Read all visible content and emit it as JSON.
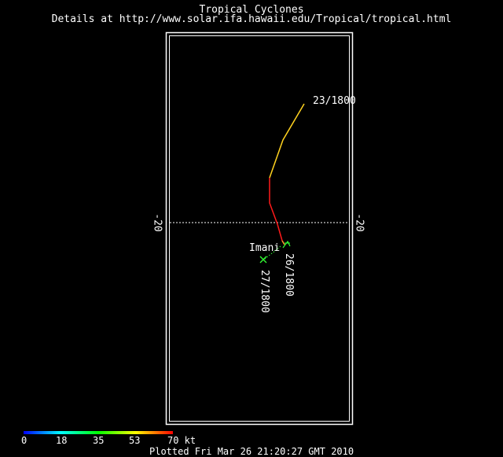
{
  "header": {
    "title": "Tropical Cyclones",
    "subtitle": "Details at http://www.solar.ifa.hawaii.edu/Tropical/tropical.html"
  },
  "map": {
    "latitude_line": {
      "value": -20,
      "left_label": "-20",
      "right_label": "-20"
    },
    "storm": {
      "name": "Imani",
      "labels": {
        "start": "23/1800",
        "current": "26/1800",
        "forecast": "27/1800"
      },
      "track_colors": {
        "early": "#ffd21f",
        "middle": "#ff1a1a",
        "current": "#ff9a2e",
        "forecast": "#33ff33"
      }
    }
  },
  "legend": {
    "colorbar_ticks": [
      "0",
      "18",
      "35",
      "53",
      "70 kt"
    ],
    "colors": [
      "#0000ff",
      "#00ffff",
      "#00ff00",
      "#ffff00",
      "#ff0000"
    ]
  },
  "footer": "Plotted Fri Mar 26 21:20:27 GMT 2010"
}
